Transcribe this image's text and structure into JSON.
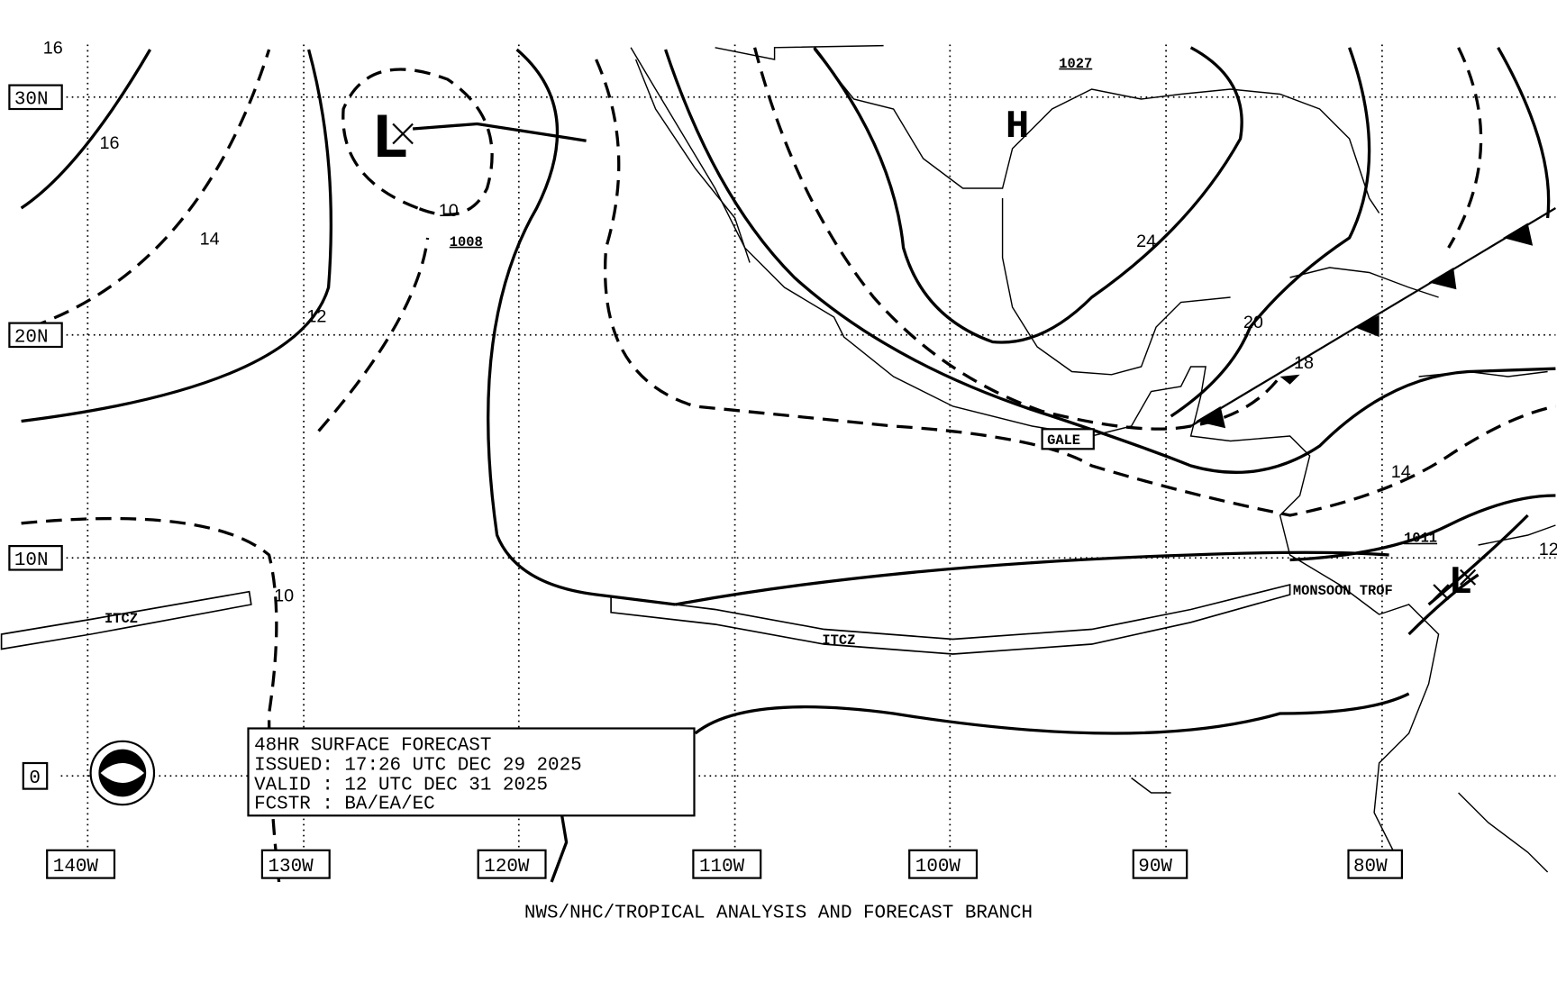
{
  "latitude_labels": [
    "30N",
    "20N",
    "10N",
    "0"
  ],
  "longitude_labels": [
    "140W",
    "130W",
    "120W",
    "110W",
    "100W",
    "90W",
    "80W"
  ],
  "isobar_labels": [
    "16",
    "16",
    "14",
    "12",
    "10",
    "10",
    "24",
    "20",
    "18",
    "14",
    "12"
  ],
  "pressure_values": [
    "1008",
    "1027",
    "1011"
  ],
  "centers": [
    "L",
    "H",
    "L"
  ],
  "features": [
    "ITCZ",
    "ITCZ",
    "GALE",
    "MONSOON TROF"
  ],
  "forecast_box": [
    "48HR SURFACE FORECAST",
    "ISSUED: 17:26 UTC DEC 29 2025",
    "VALID : 12 UTC DEC 31 2025",
    "FCSTR : BA/EA/EC"
  ],
  "footer": "NWS/NHC/TROPICAL ANALYSIS AND FORECAST BRANCH"
}
